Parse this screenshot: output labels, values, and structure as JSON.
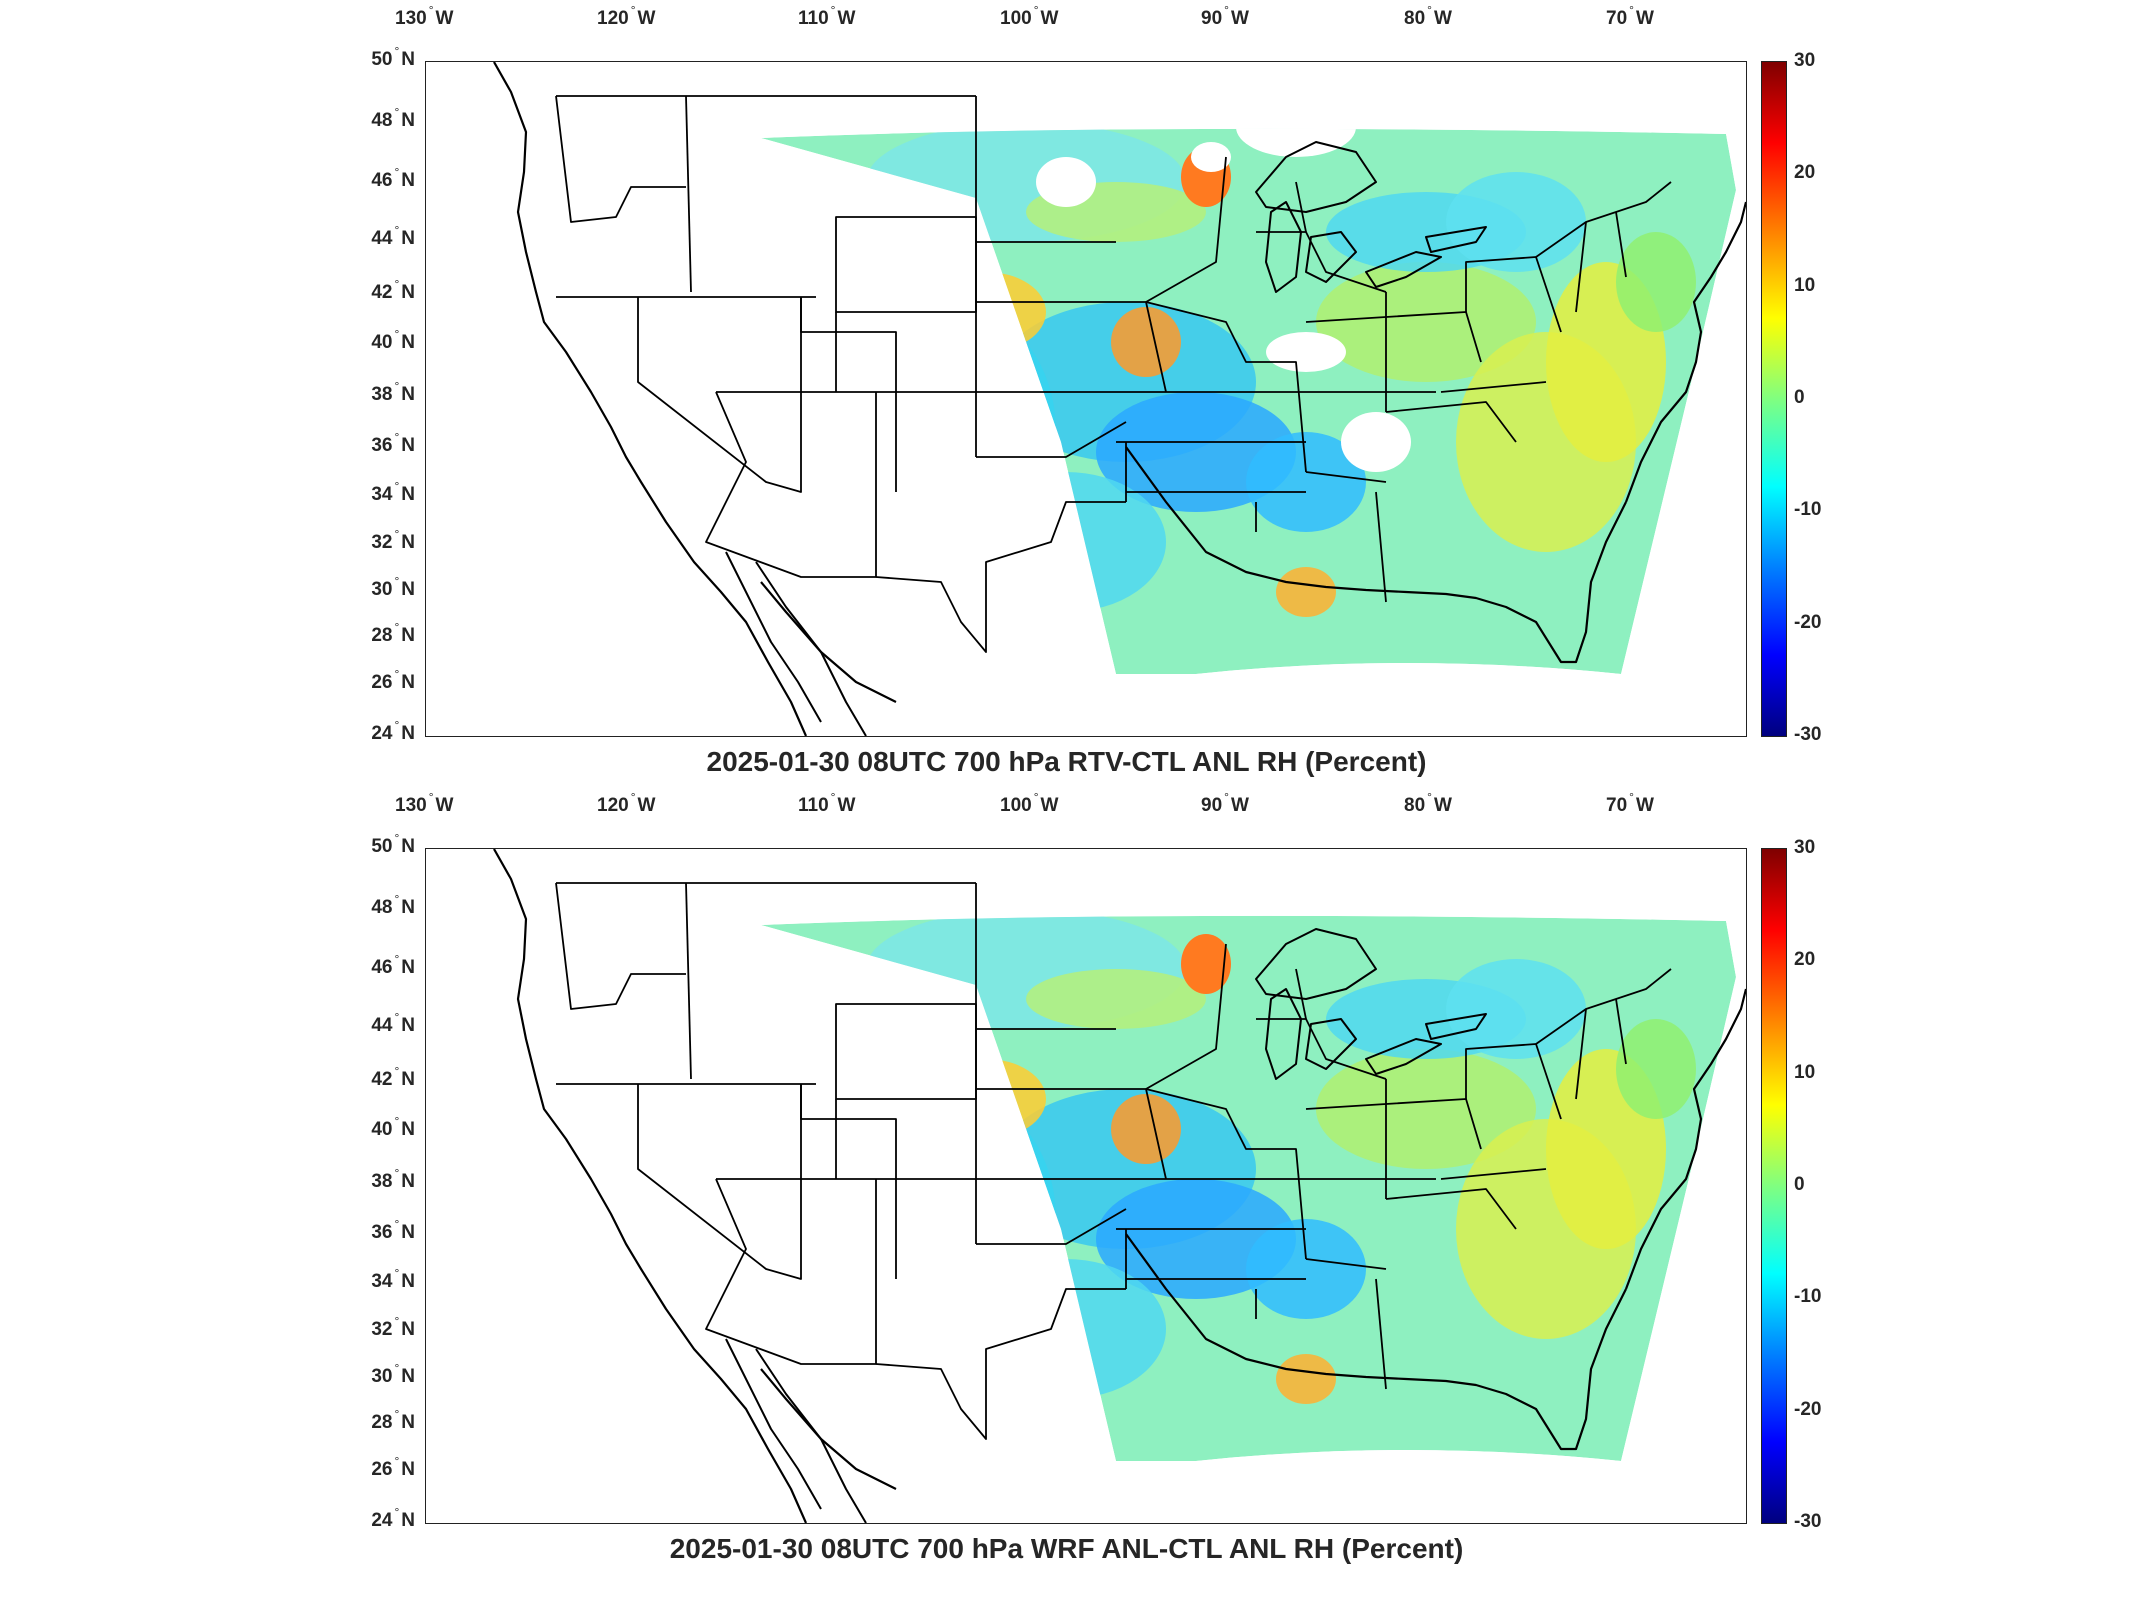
{
  "panels": [
    {
      "title": "2025-01-30 08UTC 700 hPa RTV-CTL ANL RH (Percent)",
      "lon_labels": [
        "130",
        "120",
        "110",
        "100",
        "90",
        "80",
        "70"
      ],
      "lon_suffix": "W",
      "lat_labels": [
        "50",
        "48",
        "46",
        "44",
        "42",
        "40",
        "38",
        "36",
        "34",
        "32",
        "30",
        "28",
        "26",
        "24"
      ],
      "lat_suffix": "N",
      "colorbar_labels": [
        "30",
        "20",
        "10",
        "0",
        "-10",
        "-20",
        "-30"
      ],
      "missing_data_regions": true
    },
    {
      "title": "2025-01-30 08UTC 700 hPa WRF ANL-CTL ANL RH (Percent)",
      "lon_labels": [
        "130",
        "120",
        "110",
        "100",
        "90",
        "80",
        "70"
      ],
      "lon_suffix": "W",
      "lat_labels": [
        "50",
        "48",
        "46",
        "44",
        "42",
        "40",
        "38",
        "36",
        "34",
        "32",
        "30",
        "28",
        "26",
        "24"
      ],
      "lat_suffix": "N",
      "colorbar_labels": [
        "30",
        "20",
        "10",
        "0",
        "-10",
        "-20",
        "-30"
      ],
      "missing_data_regions": false
    }
  ],
  "colormap": {
    "name": "jet",
    "min": -30,
    "max": 30,
    "colors": [
      "#00007f",
      "#0000ff",
      "#0080ff",
      "#00ffff",
      "#80ff80",
      "#ffff00",
      "#ff8000",
      "#ff0000",
      "#7f0000"
    ]
  },
  "map_style": {
    "border_color": "#000000",
    "missing_color": "#ffffff"
  }
}
